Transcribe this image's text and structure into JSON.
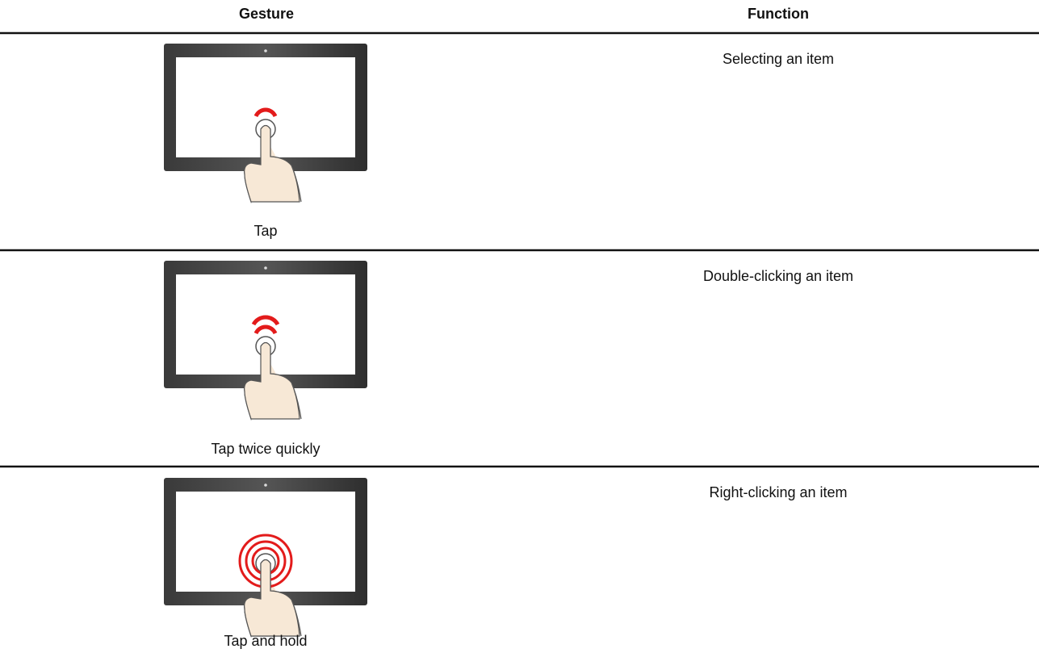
{
  "table": {
    "header": [
      "Gesture",
      "Function"
    ],
    "rows": [
      [
        "Tap",
        "Selecting an item"
      ],
      [
        "Tap twice quickly",
        "Double-clicking an item"
      ],
      [
        "Tap and hold",
        "Right-clicking an item"
      ]
    ]
  }
}
